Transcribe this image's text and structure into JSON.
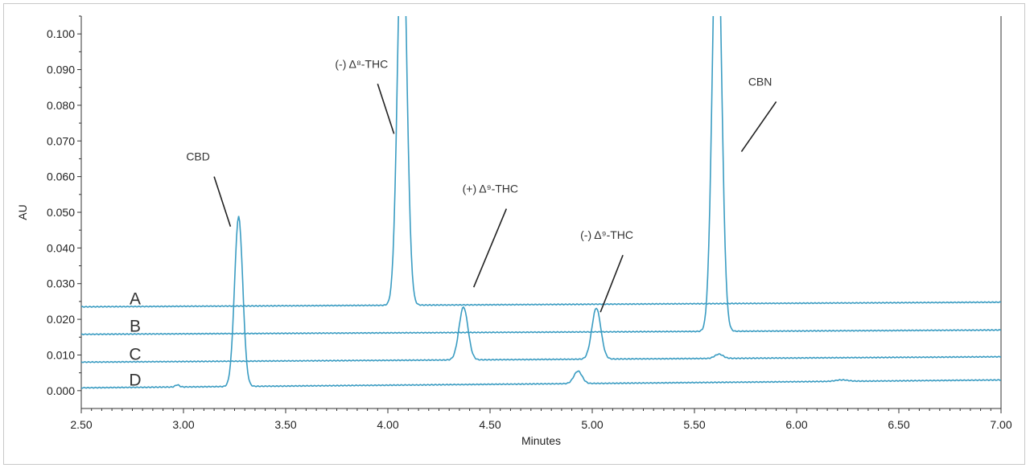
{
  "chart_data": {
    "type": "line",
    "xlabel": "Minutes",
    "ylabel": "AU",
    "xlim": [
      2.5,
      7.0
    ],
    "ylim": [
      -0.005,
      0.105
    ],
    "x_ticks": [
      "2.50",
      "3.00",
      "3.50",
      "4.00",
      "4.50",
      "5.00",
      "5.50",
      "6.00",
      "6.50",
      "7.00"
    ],
    "y_ticks": [
      "0.000",
      "0.010",
      "0.020",
      "0.030",
      "0.040",
      "0.050",
      "0.060",
      "0.070",
      "0.080",
      "0.090",
      "0.100"
    ],
    "line_color": "#3a9cc2",
    "series": [
      {
        "name": "A",
        "baseline_start": 0.0235,
        "baseline_end": 0.0248,
        "peaks": [
          {
            "rt": 4.07,
            "height": 0.115,
            "width": 0.022
          }
        ]
      },
      {
        "name": "B",
        "baseline_start": 0.0158,
        "baseline_end": 0.017,
        "peaks": [
          {
            "rt": 5.61,
            "height": 0.125,
            "width": 0.022
          }
        ]
      },
      {
        "name": "C",
        "baseline_start": 0.008,
        "baseline_end": 0.0095,
        "peaks": [
          {
            "rt": 4.37,
            "height": 0.0148,
            "width": 0.022
          },
          {
            "rt": 5.02,
            "height": 0.0143,
            "width": 0.022
          },
          {
            "rt": 5.62,
            "height": 0.0012,
            "width": 0.02
          }
        ]
      },
      {
        "name": "D",
        "baseline_start": 0.0008,
        "baseline_end": 0.003,
        "peaks": [
          {
            "rt": 3.27,
            "height": 0.0477,
            "width": 0.02
          },
          {
            "rt": 2.97,
            "height": 0.0006,
            "width": 0.01
          },
          {
            "rt": 4.93,
            "height": 0.0035,
            "width": 0.02
          },
          {
            "rt": 6.22,
            "height": 0.0004,
            "width": 0.03
          }
        ]
      }
    ],
    "annotations": [
      {
        "text": "CBD",
        "tip": [
          3.23,
          0.046
        ],
        "tail": [
          3.15,
          0.06
        ]
      },
      {
        "text": "(-) Δ⁸-THC",
        "tip": [
          4.03,
          0.072
        ],
        "tail": [
          3.95,
          0.086
        ]
      },
      {
        "text": "(+) Δ⁹-THC",
        "tip": [
          4.42,
          0.029
        ],
        "tail": [
          4.58,
          0.051
        ]
      },
      {
        "text": "(-) Δ⁹-THC",
        "tip": [
          5.04,
          0.022
        ],
        "tail": [
          5.15,
          0.038
        ]
      },
      {
        "text": "CBN",
        "tip": [
          5.73,
          0.067
        ],
        "tail": [
          5.9,
          0.081
        ]
      }
    ]
  }
}
